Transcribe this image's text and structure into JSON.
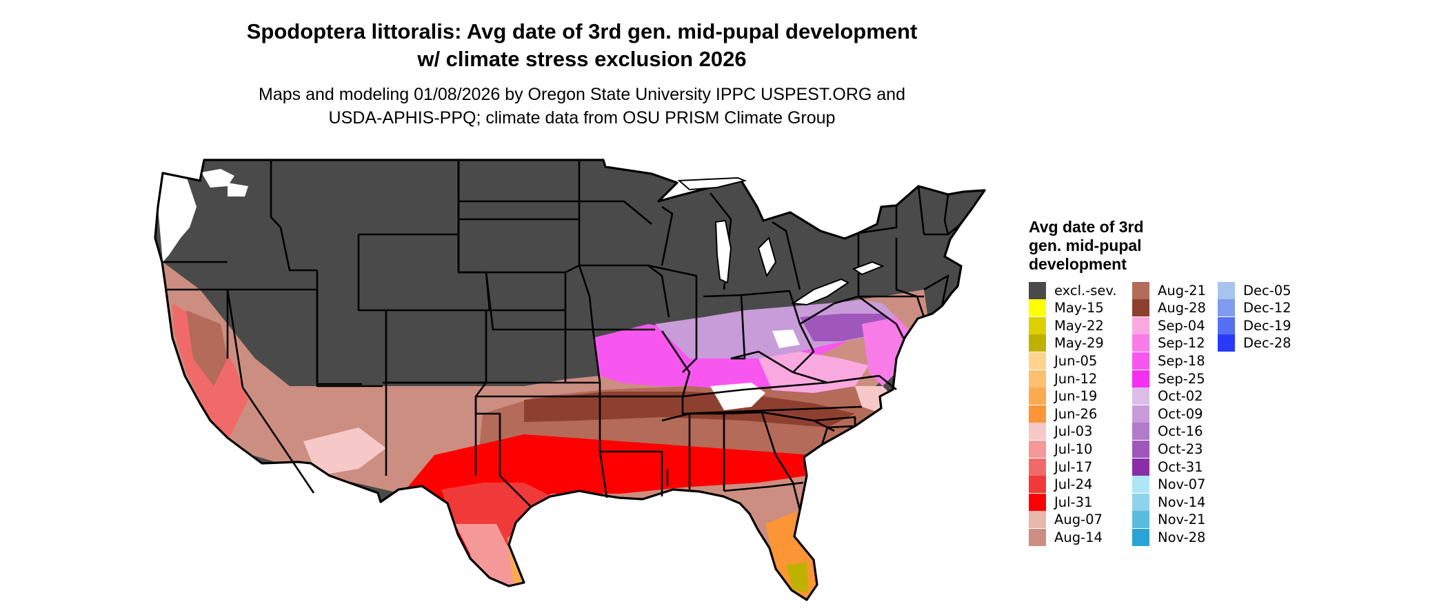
{
  "header": {
    "title_line1": "Spodoptera littoralis: Avg date of 3rd gen. mid-pupal development",
    "title_line2": "w/ climate stress exclusion 2026",
    "subtitle_line1": "Maps and modeling 01/08/2026 by Oregon State University IPPC USPEST.ORG and",
    "subtitle_line2": "USDA-APHIS-PPQ; climate data from OSU PRISM Climate Group"
  },
  "legend": {
    "title_line1": "Avg date of 3rd",
    "title_line2": "gen. mid-pupal",
    "title_line3": "development",
    "columns": [
      [
        {
          "label": "excl.-sev.",
          "color": "#4a4a4a"
        },
        {
          "label": "May-15",
          "color": "#ffff00"
        },
        {
          "label": "May-22",
          "color": "#dcd000"
        },
        {
          "label": "May-29",
          "color": "#bfb100"
        },
        {
          "label": "Jun-05",
          "color": "#fed38c"
        },
        {
          "label": "Jun-12",
          "color": "#fdc070"
        },
        {
          "label": "Jun-19",
          "color": "#fcaa50"
        },
        {
          "label": "Jun-26",
          "color": "#fb9535"
        },
        {
          "label": "Jul-03",
          "color": "#f7c8c8"
        },
        {
          "label": "Jul-10",
          "color": "#f49898"
        },
        {
          "label": "Jul-17",
          "color": "#f16a6a"
        },
        {
          "label": "Jul-24",
          "color": "#f03a3a"
        },
        {
          "label": "Jul-31",
          "color": "#ff0000"
        },
        {
          "label": "Aug-07",
          "color": "#e8b8ad"
        },
        {
          "label": "Aug-14",
          "color": "#cc8e80"
        }
      ],
      [
        {
          "label": "Aug-21",
          "color": "#b46b5a"
        },
        {
          "label": "Aug-28",
          "color": "#8e4030"
        },
        {
          "label": "Sep-04",
          "color": "#f9a8e0"
        },
        {
          "label": "Sep-12",
          "color": "#f87ce8"
        },
        {
          "label": "Sep-18",
          "color": "#f757ef"
        },
        {
          "label": "Sep-25",
          "color": "#f52ff2"
        },
        {
          "label": "Oct-02",
          "color": "#dcbde8"
        },
        {
          "label": "Oct-09",
          "color": "#c89bd9"
        },
        {
          "label": "Oct-16",
          "color": "#b27bca"
        },
        {
          "label": "Oct-23",
          "color": "#9f57bb"
        },
        {
          "label": "Oct-31",
          "color": "#8a2ea8"
        },
        {
          "label": "Nov-07",
          "color": "#afe6f7"
        },
        {
          "label": "Nov-14",
          "color": "#8dd3ee"
        },
        {
          "label": "Nov-21",
          "color": "#5cbce0"
        },
        {
          "label": "Nov-28",
          "color": "#2aa4d6"
        }
      ],
      [
        {
          "label": "Dec-05",
          "color": "#a6c4ec"
        },
        {
          "label": "Dec-12",
          "color": "#7f9cef"
        },
        {
          "label": "Dec-19",
          "color": "#5670f3"
        },
        {
          "label": "Dec-28",
          "color": "#2a3bf7"
        }
      ]
    ]
  },
  "map": {
    "background_color": "#ffffff",
    "boundary_color": "#000000",
    "excluded_color": "#4a4a4a",
    "unmodeled_color": "#ffffff"
  }
}
